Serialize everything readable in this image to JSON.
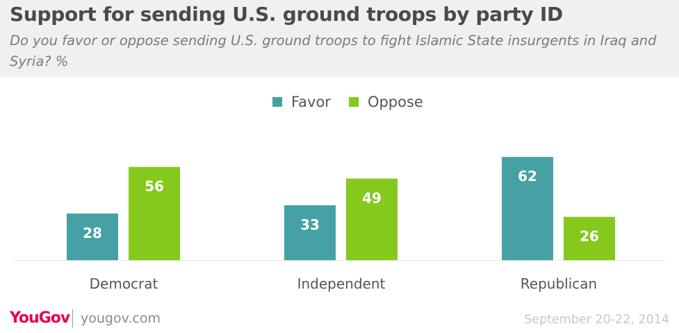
{
  "header": {
    "title": "Support for sending U.S. ground troops by party ID",
    "subtitle": "Do you favor or oppose sending U.S. ground troops to fight Islamic State insurgents in Iraq and Syria? %"
  },
  "footer": {
    "logo": "YouGov",
    "url": "yougov.com",
    "date": "September 20-22, 2014"
  },
  "colors": {
    "favor": "#45a1a4",
    "oppose": "#84c91c",
    "header_bg": "#f0f0f0"
  },
  "chart_data": {
    "type": "bar",
    "categories": [
      "Democrat",
      "Independent",
      "Republican"
    ],
    "series": [
      {
        "name": "Favor",
        "values": [
          28,
          33,
          62
        ],
        "color": "#45a1a4"
      },
      {
        "name": "Oppose",
        "values": [
          56,
          49,
          26
        ],
        "color": "#84c91c"
      }
    ],
    "legend": "top-center",
    "grid": false,
    "ylim": [
      0,
      62
    ]
  }
}
